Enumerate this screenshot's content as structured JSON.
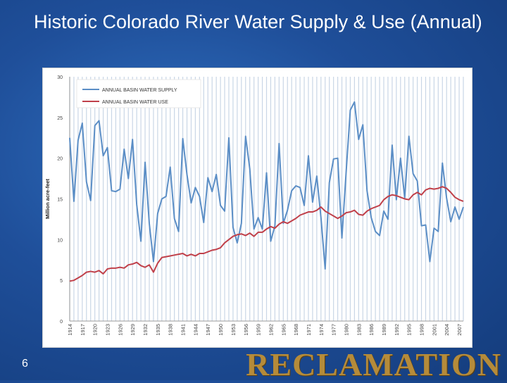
{
  "slide": {
    "title": "Historic Colorado River Water Supply & Use (Annual)",
    "number": "6",
    "logo_text": "RECLAMATION"
  },
  "colors": {
    "supply": "#5b8ec6",
    "use": "#c0404a",
    "grid": "#c9d6e6",
    "text": "#444444"
  },
  "chart_data": {
    "type": "line",
    "title": "",
    "ylabel": "Million acre-feet",
    "xlabel": "",
    "ylim": [
      0,
      30
    ],
    "yticks": [
      0,
      5,
      10,
      15,
      20,
      25,
      30
    ],
    "xlim": [
      1914,
      2008
    ],
    "xticks": [
      1914,
      1917,
      1920,
      1923,
      1926,
      1929,
      1932,
      1935,
      1938,
      1941,
      1944,
      1947,
      1950,
      1953,
      1956,
      1959,
      1962,
      1965,
      1968,
      1971,
      1974,
      1977,
      1980,
      1983,
      1986,
      1989,
      1992,
      1995,
      1998,
      2001,
      2004,
      2007
    ],
    "grid": "vertical yearly lines",
    "legend_position": "top-left",
    "x": [
      1914,
      1915,
      1916,
      1917,
      1918,
      1919,
      1920,
      1921,
      1922,
      1923,
      1924,
      1925,
      1926,
      1927,
      1928,
      1929,
      1930,
      1931,
      1932,
      1933,
      1934,
      1935,
      1936,
      1937,
      1938,
      1939,
      1940,
      1941,
      1942,
      1943,
      1944,
      1945,
      1946,
      1947,
      1948,
      1949,
      1950,
      1951,
      1952,
      1953,
      1954,
      1955,
      1956,
      1957,
      1958,
      1959,
      1960,
      1961,
      1962,
      1963,
      1964,
      1965,
      1966,
      1967,
      1968,
      1969,
      1970,
      1971,
      1972,
      1973,
      1974,
      1975,
      1976,
      1977,
      1978,
      1979,
      1980,
      1981,
      1982,
      1983,
      1984,
      1985,
      1986,
      1987,
      1988,
      1989,
      1990,
      1991,
      1992,
      1993,
      1994,
      1995,
      1996,
      1997,
      1998,
      1999,
      2000,
      2001,
      2002,
      2003,
      2004,
      2005,
      2006,
      2007,
      2008
    ],
    "series": [
      {
        "name": "ANNUAL BASIN WATER SUPPLY",
        "values": [
          22.5,
          14.7,
          22.2,
          24.3,
          17.1,
          14.8,
          24.0,
          24.6,
          20.3,
          21.3,
          16.0,
          15.9,
          16.2,
          21.1,
          17.5,
          22.3,
          14.3,
          9.8,
          19.5,
          12.0,
          7.3,
          13.2,
          15.0,
          15.3,
          18.9,
          12.6,
          11.0,
          22.4,
          18.0,
          14.5,
          16.4,
          15.3,
          12.1,
          17.6,
          15.9,
          18.0,
          14.2,
          13.5,
          22.5,
          11.5,
          9.6,
          12.0,
          22.7,
          18.7,
          11.3,
          12.7,
          11.3,
          18.2,
          9.8,
          11.7,
          21.8,
          12.0,
          13.6,
          16.0,
          16.6,
          16.4,
          14.2,
          20.3,
          14.6,
          17.8,
          12.7,
          6.4,
          17.0,
          19.9,
          20.0,
          10.2,
          18.2,
          25.9,
          26.9,
          22.3,
          24.1,
          16.0,
          12.7,
          11.0,
          10.5,
          13.5,
          12.5,
          21.6,
          14.9,
          20.0,
          15.1,
          22.7,
          18.1,
          17.2,
          11.7,
          11.8,
          7.3,
          11.4,
          11.0,
          19.4,
          15.1,
          12.2,
          14.0,
          12.5,
          14.0
        ]
      },
      {
        "name": "ANNUAL BASIN WATER USE",
        "values": [
          4.9,
          5.0,
          5.3,
          5.6,
          6.0,
          6.1,
          6.0,
          6.2,
          5.8,
          6.4,
          6.5,
          6.5,
          6.6,
          6.5,
          6.9,
          7.0,
          7.2,
          6.8,
          6.6,
          6.9,
          6.0,
          7.1,
          7.8,
          7.9,
          8.0,
          8.1,
          8.2,
          8.3,
          8.0,
          8.2,
          8.0,
          8.3,
          8.3,
          8.5,
          8.7,
          8.8,
          9.0,
          9.6,
          10.0,
          10.4,
          10.6,
          10.7,
          10.5,
          10.8,
          10.4,
          10.9,
          10.9,
          11.3,
          11.6,
          11.4,
          11.9,
          12.2,
          12.0,
          12.3,
          12.6,
          13.0,
          13.2,
          13.4,
          13.4,
          13.6,
          14.0,
          13.5,
          13.2,
          12.9,
          12.6,
          12.9,
          13.3,
          13.4,
          13.6,
          13.1,
          13.0,
          13.5,
          13.8,
          14.0,
          14.2,
          14.9,
          15.3,
          15.5,
          15.4,
          15.2,
          15.0,
          14.9,
          15.5,
          15.8,
          15.5,
          16.1,
          16.3,
          16.2,
          16.3,
          16.5,
          16.3,
          15.8,
          15.2,
          14.9,
          14.7
        ]
      }
    ]
  }
}
